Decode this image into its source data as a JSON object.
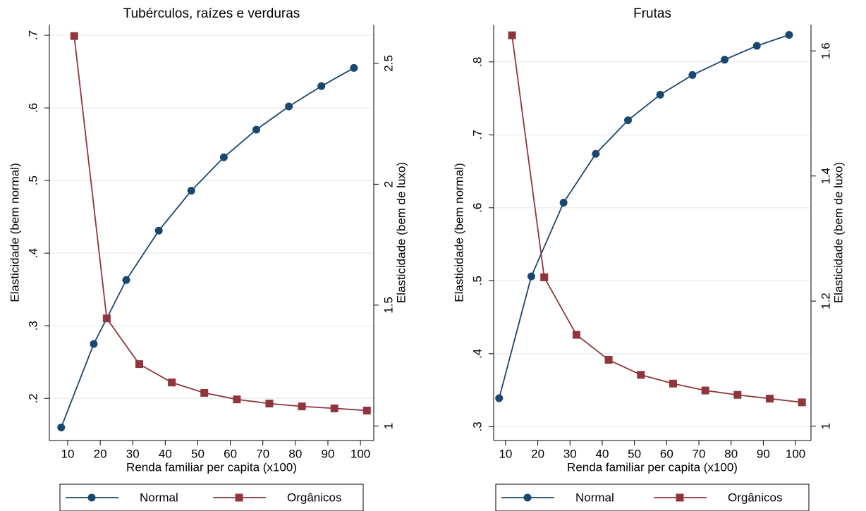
{
  "chart_data": [
    {
      "type": "line",
      "title": "Tubérculos, raízes e verduras",
      "x_label": "Renda familiar per capita (x100)",
      "y_label": "Elasticidade (bem normal)",
      "y2_label": "Elasticidade (bem de luxo)",
      "xlim": [
        4.36,
        104.1
      ],
      "xticks": [
        10,
        20,
        30,
        40,
        50,
        60,
        70,
        80,
        90,
        100
      ],
      "ylim": [
        0.142,
        0.7146
      ],
      "yticks": [
        {
          "value": 0.2,
          "label": ".2"
        },
        {
          "value": 0.3,
          "label": ".3"
        },
        {
          "value": 0.4,
          "label": ".4"
        },
        {
          "value": 0.5,
          "label": ".5"
        },
        {
          "value": 0.6,
          "label": ".6"
        },
        {
          "value": 0.7,
          "label": ".7"
        }
      ],
      "y2lim": [
        0.94,
        2.66
      ],
      "y2ticks": [
        1,
        1.5,
        2,
        2.5
      ],
      "grid": true,
      "series": [
        {
          "name": "Normal",
          "color": "#1a476f",
          "marker": "circle",
          "axis": "y",
          "x": [
            8,
            18,
            28,
            38,
            48,
            58,
            68,
            78,
            88,
            98
          ],
          "values": [
            0.16,
            0.275,
            0.363,
            0.431,
            0.486,
            0.532,
            0.57,
            0.602,
            0.63,
            0.655
          ]
        },
        {
          "name": "Orgânicos",
          "color": "#90353b",
          "marker": "square",
          "axis": "y2",
          "x": [
            12,
            22,
            32,
            42,
            52,
            62,
            72,
            82,
            92,
            102
          ],
          "values": [
            2.613,
            1.445,
            1.256,
            1.18,
            1.137,
            1.11,
            1.093,
            1.081,
            1.073,
            1.064
          ]
        }
      ]
    },
    {
      "type": "line",
      "title": "Frutas",
      "x_label": "Renda familiar per capita (x100)",
      "y_label": "Elasticidade (bem normal)",
      "y2_label": "Elasticidade (bem de luxo)",
      "xlim": [
        6.3,
        104.8
      ],
      "xticks": [
        10,
        20,
        30,
        40,
        50,
        60,
        70,
        80,
        90,
        100
      ],
      "ylim": [
        0.281,
        0.851
      ],
      "yticks": [
        {
          "value": 0.3,
          "label": ".3"
        },
        {
          "value": 0.4,
          "label": ".4"
        },
        {
          "value": 0.5,
          "label": ".5"
        },
        {
          "value": 0.6,
          "label": ".6"
        },
        {
          "value": 0.7,
          "label": ".7"
        },
        {
          "value": 0.8,
          "label": ".8"
        }
      ],
      "y2lim": [
        0.977,
        1.642
      ],
      "y2ticks": [
        1,
        1.2,
        1.4,
        1.6
      ],
      "grid": true,
      "series": [
        {
          "name": "Normal",
          "color": "#1a476f",
          "marker": "circle",
          "axis": "y",
          "x": [
            8,
            18,
            28,
            38,
            48,
            58,
            68,
            78,
            88,
            98
          ],
          "values": [
            0.339,
            0.506,
            0.607,
            0.674,
            0.72,
            0.755,
            0.782,
            0.803,
            0.822,
            0.837
          ]
        },
        {
          "name": "Orgânicos",
          "color": "#90353b",
          "marker": "square",
          "axis": "y2",
          "x": [
            12,
            22,
            32,
            42,
            52,
            62,
            72,
            82,
            92,
            102
          ],
          "values": [
            1.625,
            1.238,
            1.146,
            1.106,
            1.082,
            1.068,
            1.057,
            1.05,
            1.044,
            1.038
          ]
        }
      ]
    }
  ]
}
